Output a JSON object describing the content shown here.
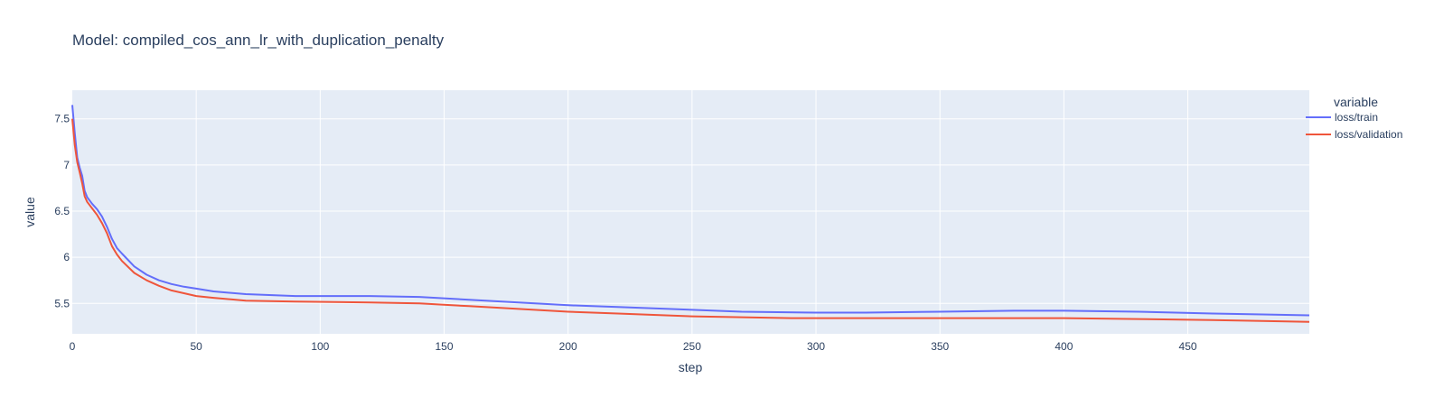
{
  "chart_data": {
    "type": "line",
    "title": "Model: compiled_cos_ann_lr_with_duplication_penalty",
    "xlabel": "step",
    "ylabel": "value",
    "xlim": [
      0,
      499
    ],
    "ylim": [
      5.17,
      7.81
    ],
    "x_ticks": [
      0,
      50,
      100,
      150,
      200,
      250,
      300,
      350,
      400,
      450
    ],
    "y_ticks": [
      5.5,
      6,
      6.5,
      7,
      7.5
    ],
    "y_tick_labels": [
      "5.5",
      "6",
      "6.5",
      "7",
      "7.5"
    ],
    "grid": true,
    "legend": {
      "title": "variable",
      "position": "right"
    },
    "plot_bg": "#e5ecf6",
    "series": [
      {
        "name": "loss/train",
        "color": "#636efa",
        "x": [
          0,
          1,
          2,
          3,
          4,
          5,
          6,
          8,
          10,
          12,
          14,
          16,
          18,
          20,
          25,
          30,
          35,
          40,
          45,
          50,
          57,
          70,
          90,
          120,
          140,
          160,
          180,
          200,
          220,
          250,
          270,
          300,
          320,
          350,
          380,
          400,
          430,
          460,
          480,
          499
        ],
        "y": [
          7.65,
          7.35,
          7.08,
          6.97,
          6.88,
          6.72,
          6.65,
          6.58,
          6.52,
          6.44,
          6.33,
          6.2,
          6.1,
          6.04,
          5.9,
          5.81,
          5.75,
          5.71,
          5.68,
          5.66,
          5.63,
          5.6,
          5.58,
          5.58,
          5.57,
          5.54,
          5.51,
          5.48,
          5.46,
          5.43,
          5.41,
          5.4,
          5.4,
          5.41,
          5.42,
          5.42,
          5.41,
          5.39,
          5.38,
          5.37
        ]
      },
      {
        "name": "loss/validation",
        "color": "#ef553b",
        "x": [
          0,
          1,
          2,
          3,
          4,
          5,
          6,
          8,
          10,
          12,
          14,
          16,
          18,
          20,
          25,
          30,
          35,
          40,
          45,
          50,
          57,
          70,
          90,
          120,
          140,
          160,
          180,
          200,
          220,
          250,
          270,
          290,
          320,
          350,
          385,
          400,
          430,
          460,
          480,
          499
        ],
        "y": [
          7.5,
          7.22,
          7.03,
          6.92,
          6.8,
          6.66,
          6.6,
          6.53,
          6.46,
          6.37,
          6.26,
          6.12,
          6.03,
          5.96,
          5.83,
          5.75,
          5.69,
          5.64,
          5.61,
          5.58,
          5.56,
          5.53,
          5.52,
          5.51,
          5.5,
          5.47,
          5.44,
          5.41,
          5.39,
          5.36,
          5.35,
          5.34,
          5.34,
          5.34,
          5.34,
          5.34,
          5.33,
          5.32,
          5.31,
          5.3
        ]
      }
    ]
  }
}
